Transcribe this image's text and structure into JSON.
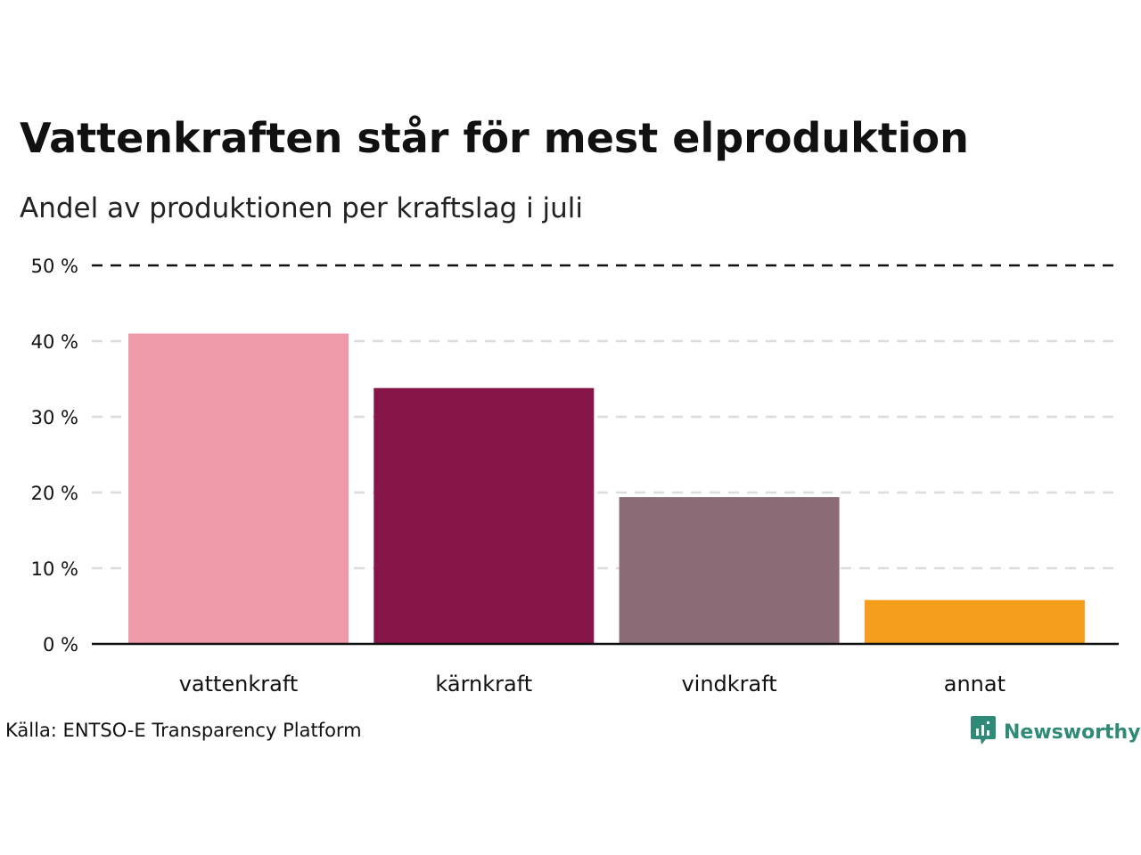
{
  "chart_data": {
    "type": "bar",
    "title": "Vattenkraften står för mest elproduktion",
    "subtitle": "Andel av produktionen per kraftslag i juli",
    "categories": [
      "vattenkraft",
      "kärnkraft",
      "vindkraft",
      "annat"
    ],
    "values": [
      41,
      33.8,
      19.4,
      5.8
    ],
    "colors": [
      "#ef9aa9",
      "#861547",
      "#8b6c76",
      "#f49e1b"
    ],
    "ylim": [
      0,
      50
    ],
    "yticks": [
      0,
      10,
      20,
      30,
      40,
      50
    ],
    "ytick_labels": [
      "0 %",
      "10 %",
      "20 %",
      "30 %",
      "40 %",
      "50 %"
    ],
    "grid": true,
    "xlabel": "",
    "ylabel": ""
  },
  "footer": {
    "source": "Källa: ENTSO-E Transparency Platform",
    "brand": "Newsworthy",
    "brand_icon": "newsworthy-logo-icon",
    "brand_color": "#2f8a78"
  }
}
